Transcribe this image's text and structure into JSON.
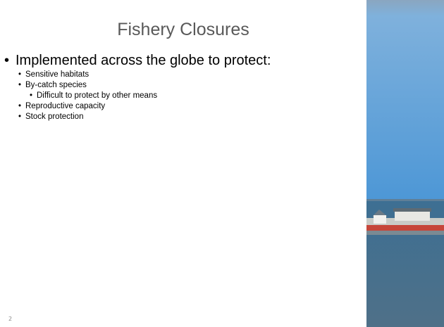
{
  "title": "Fishery Closures",
  "bullets": [
    {
      "text": "Implemented across the globe to protect:",
      "children": [
        {
          "text": "Sensitive habitats"
        },
        {
          "text": "By-catch species",
          "children": [
            {
              "text": "Difficult to protect by other means"
            }
          ]
        },
        {
          "text": "Reproductive capacity"
        },
        {
          "text": "Stock protection"
        }
      ]
    }
  ],
  "slide_number": "2"
}
